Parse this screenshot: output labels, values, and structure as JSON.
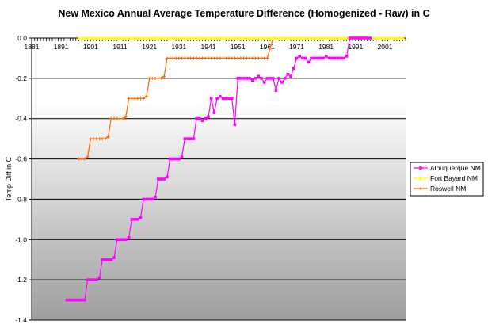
{
  "chart_data": {
    "type": "line",
    "title": "New Mexico Annual Average Temperature Difference (Homogenized - Raw) in C",
    "xlabel": "",
    "ylabel": "Temp Diff in C",
    "xlim": [
      1881,
      2008
    ],
    "ylim": [
      -1.4,
      0.0
    ],
    "x_ticks": [
      1881,
      1891,
      1901,
      1911,
      1921,
      1931,
      1941,
      1951,
      1961,
      1971,
      1981,
      1991,
      2001
    ],
    "y_ticks": [
      0.0,
      -0.2,
      -0.4,
      -0.6,
      -0.8,
      -1.0,
      -1.2,
      -1.4
    ],
    "y_tick_labels": [
      "0.0",
      "-0.2",
      "-0.4",
      "-0.6",
      "-0.8",
      "-1.0",
      "-1.2",
      "-1.4"
    ],
    "grid": "horizontal",
    "legend_position": "right",
    "series": [
      {
        "name": "Albuquerque NM",
        "color": "#ff00ff",
        "marker": "square",
        "points": [
          [
            1893,
            -1.3
          ],
          [
            1894,
            -1.3
          ],
          [
            1895,
            -1.3
          ],
          [
            1896,
            -1.3
          ],
          [
            1897,
            -1.3
          ],
          [
            1898,
            -1.3
          ],
          [
            1899,
            -1.3
          ],
          [
            1900,
            -1.2
          ],
          [
            1901,
            -1.2
          ],
          [
            1902,
            -1.2
          ],
          [
            1903,
            -1.2
          ],
          [
            1904,
            -1.19
          ],
          [
            1905,
            -1.1
          ],
          [
            1906,
            -1.1
          ],
          [
            1907,
            -1.1
          ],
          [
            1908,
            -1.1
          ],
          [
            1909,
            -1.09
          ],
          [
            1910,
            -1.0
          ],
          [
            1911,
            -1.0
          ],
          [
            1912,
            -1.0
          ],
          [
            1913,
            -1.0
          ],
          [
            1914,
            -0.99
          ],
          [
            1915,
            -0.9
          ],
          [
            1916,
            -0.9
          ],
          [
            1917,
            -0.9
          ],
          [
            1918,
            -0.89
          ],
          [
            1919,
            -0.8
          ],
          [
            1920,
            -0.8
          ],
          [
            1921,
            -0.8
          ],
          [
            1922,
            -0.8
          ],
          [
            1923,
            -0.79
          ],
          [
            1924,
            -0.7
          ],
          [
            1925,
            -0.7
          ],
          [
            1926,
            -0.7
          ],
          [
            1927,
            -0.69
          ],
          [
            1928,
            -0.6
          ],
          [
            1929,
            -0.6
          ],
          [
            1930,
            -0.6
          ],
          [
            1931,
            -0.6
          ],
          [
            1932,
            -0.59
          ],
          [
            1933,
            -0.5
          ],
          [
            1934,
            -0.5
          ],
          [
            1935,
            -0.5
          ],
          [
            1936,
            -0.5
          ],
          [
            1937,
            -0.4
          ],
          [
            1938,
            -0.4
          ],
          [
            1939,
            -0.41
          ],
          [
            1940,
            -0.4
          ],
          [
            1941,
            -0.39
          ],
          [
            1942,
            -0.3
          ],
          [
            1943,
            -0.37
          ],
          [
            1944,
            -0.3
          ],
          [
            1945,
            -0.29
          ],
          [
            1946,
            -0.3
          ],
          [
            1947,
            -0.3
          ],
          [
            1948,
            -0.3
          ],
          [
            1949,
            -0.3
          ],
          [
            1950,
            -0.43
          ],
          [
            1951,
            -0.2
          ],
          [
            1952,
            -0.2
          ],
          [
            1953,
            -0.2
          ],
          [
            1954,
            -0.2
          ],
          [
            1955,
            -0.2
          ],
          [
            1956,
            -0.21
          ],
          [
            1957,
            -0.2
          ],
          [
            1958,
            -0.19
          ],
          [
            1959,
            -0.2
          ],
          [
            1960,
            -0.22
          ],
          [
            1961,
            -0.2
          ],
          [
            1962,
            -0.2
          ],
          [
            1963,
            -0.2
          ],
          [
            1964,
            -0.26
          ],
          [
            1965,
            -0.2
          ],
          [
            1966,
            -0.22
          ],
          [
            1967,
            -0.2
          ],
          [
            1968,
            -0.18
          ],
          [
            1969,
            -0.19
          ],
          [
            1970,
            -0.15
          ],
          [
            1971,
            -0.1
          ],
          [
            1972,
            -0.09
          ],
          [
            1973,
            -0.1
          ],
          [
            1974,
            -0.1
          ],
          [
            1975,
            -0.12
          ],
          [
            1976,
            -0.1
          ],
          [
            1977,
            -0.1
          ],
          [
            1978,
            -0.1
          ],
          [
            1979,
            -0.1
          ],
          [
            1980,
            -0.1
          ],
          [
            1981,
            -0.09
          ],
          [
            1982,
            -0.1
          ],
          [
            1983,
            -0.1
          ],
          [
            1984,
            -0.1
          ],
          [
            1985,
            -0.1
          ],
          [
            1986,
            -0.1
          ],
          [
            1987,
            -0.1
          ],
          [
            1988,
            -0.09
          ],
          [
            1989,
            0.0
          ],
          [
            1990,
            0.0
          ],
          [
            1991,
            0.0
          ],
          [
            1992,
            0.0
          ],
          [
            1993,
            0.0
          ],
          [
            1994,
            0.0
          ],
          [
            1995,
            0.0
          ],
          [
            1996,
            0.0
          ]
        ]
      },
      {
        "name": "Fort Bayard NM",
        "color": "#ffff00",
        "marker": "triangle",
        "x_range": [
          1897,
          2007
        ],
        "value": 0.0
      },
      {
        "name": "Roswell NM",
        "color": "#ff6600",
        "marker": "plus",
        "points": [
          [
            1897,
            -0.6
          ],
          [
            1898,
            -0.6
          ],
          [
            1899,
            -0.6
          ],
          [
            1900,
            -0.59
          ],
          [
            1901,
            -0.5
          ],
          [
            1902,
            -0.5
          ],
          [
            1903,
            -0.5
          ],
          [
            1904,
            -0.5
          ],
          [
            1905,
            -0.5
          ],
          [
            1906,
            -0.5
          ],
          [
            1907,
            -0.49
          ],
          [
            1908,
            -0.4
          ],
          [
            1909,
            -0.4
          ],
          [
            1910,
            -0.4
          ],
          [
            1911,
            -0.4
          ],
          [
            1912,
            -0.4
          ],
          [
            1913,
            -0.39
          ],
          [
            1914,
            -0.3
          ],
          [
            1915,
            -0.3
          ],
          [
            1916,
            -0.3
          ],
          [
            1917,
            -0.3
          ],
          [
            1918,
            -0.3
          ],
          [
            1919,
            -0.3
          ],
          [
            1920,
            -0.29
          ],
          [
            1921,
            -0.2
          ],
          [
            1922,
            -0.2
          ],
          [
            1923,
            -0.2
          ],
          [
            1924,
            -0.2
          ],
          [
            1925,
            -0.2
          ],
          [
            1926,
            -0.19
          ],
          [
            1927,
            -0.1
          ],
          [
            1928,
            -0.1
          ],
          [
            1929,
            -0.1
          ],
          [
            1930,
            -0.1
          ],
          [
            1931,
            -0.1
          ],
          [
            1932,
            -0.1
          ],
          [
            1933,
            -0.1
          ],
          [
            1934,
            -0.1
          ],
          [
            1935,
            -0.1
          ],
          [
            1936,
            -0.1
          ],
          [
            1937,
            -0.1
          ],
          [
            1938,
            -0.1
          ],
          [
            1939,
            -0.1
          ],
          [
            1940,
            -0.1
          ],
          [
            1941,
            -0.1
          ],
          [
            1942,
            -0.1
          ],
          [
            1943,
            -0.1
          ],
          [
            1944,
            -0.1
          ],
          [
            1945,
            -0.1
          ],
          [
            1946,
            -0.1
          ],
          [
            1947,
            -0.1
          ],
          [
            1948,
            -0.1
          ],
          [
            1949,
            -0.1
          ],
          [
            1950,
            -0.1
          ],
          [
            1951,
            -0.1
          ],
          [
            1952,
            -0.1
          ],
          [
            1953,
            -0.1
          ],
          [
            1954,
            -0.1
          ],
          [
            1955,
            -0.1
          ],
          [
            1956,
            -0.1
          ],
          [
            1957,
            -0.1
          ],
          [
            1958,
            -0.1
          ],
          [
            1959,
            -0.1
          ],
          [
            1960,
            -0.1
          ],
          [
            1961,
            -0.1
          ],
          [
            1962,
            -0.05
          ],
          [
            1963,
            0.0
          ],
          [
            1964,
            0.0
          ],
          [
            1970,
            0.0
          ],
          [
            1980,
            0.0
          ],
          [
            1990,
            0.0
          ],
          [
            2000,
            0.0
          ],
          [
            2007,
            0.0
          ]
        ]
      }
    ]
  }
}
